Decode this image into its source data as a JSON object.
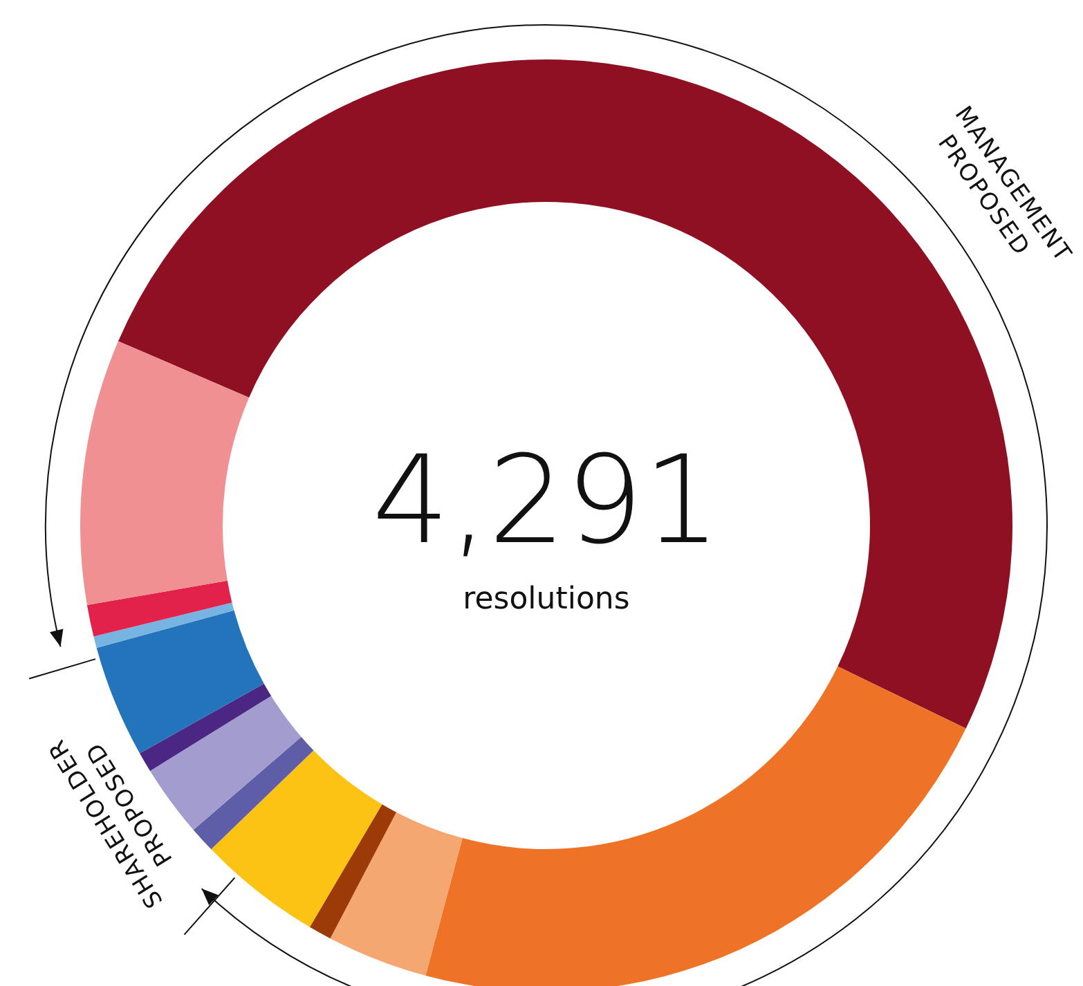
{
  "chart_data": {
    "type": "donut",
    "categories": [
      null,
      null,
      null,
      null,
      null,
      null,
      null,
      null,
      null,
      null,
      null,
      null
    ],
    "values": [
      50.7,
      22.0,
      3.5,
      0.8,
      4.3,
      0.9,
      2.5,
      0.7,
      3.9,
      0.4,
      1.1,
      9.2
    ],
    "colors": [
      "#8e1022",
      "#ee7326",
      "#f5a772",
      "#9c3a08",
      "#fcc315",
      "#5e5ea8",
      "#a39ccf",
      "#4b2682",
      "#2474bb",
      "#77b4e2",
      "#e2224a",
      "#f19093"
    ],
    "annotations": [
      "4,291",
      "resolutions",
      "MANAGEMENT PROPOSED",
      "SHAREHOLDER PROPOSED"
    ]
  }
}
